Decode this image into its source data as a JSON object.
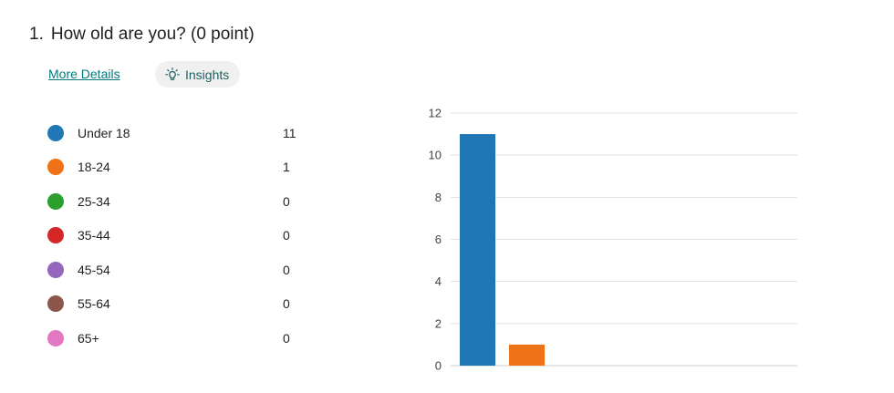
{
  "question": {
    "number": "1.",
    "text": "How old are you? (0 point)"
  },
  "links": {
    "more_details": "More Details",
    "insights": "Insights"
  },
  "icons": {
    "insights": "lightbulb-icon"
  },
  "colors": {
    "link": "#03787c",
    "insights_bg": "#f0f0f0"
  },
  "legend": [
    {
      "label": "Under 18",
      "count": "11",
      "color": "#1f77b4"
    },
    {
      "label": "18-24",
      "count": "1",
      "color": "#ef7316"
    },
    {
      "label": "25-34",
      "count": "0",
      "color": "#2ca02c"
    },
    {
      "label": "35-44",
      "count": "0",
      "color": "#d62728"
    },
    {
      "label": "45-54",
      "count": "0",
      "color": "#9467bd"
    },
    {
      "label": "55-64",
      "count": "0",
      "color": "#8c564b"
    },
    {
      "label": "65+",
      "count": "0",
      "color": "#e377c2"
    }
  ],
  "chart_data": {
    "type": "bar",
    "categories": [
      "Under 18",
      "18-24",
      "25-34",
      "35-44",
      "45-54",
      "55-64",
      "65+"
    ],
    "values": [
      11,
      1,
      0,
      0,
      0,
      0,
      0
    ],
    "colors": [
      "#1f77b4",
      "#ef7316",
      "#2ca02c",
      "#d62728",
      "#9467bd",
      "#8c564b",
      "#e377c2"
    ],
    "ylim": [
      0,
      12
    ],
    "yticks": [
      0,
      2,
      4,
      6,
      8,
      10,
      12
    ],
    "grid": true,
    "xlabel": "",
    "ylabel": "",
    "title": ""
  }
}
